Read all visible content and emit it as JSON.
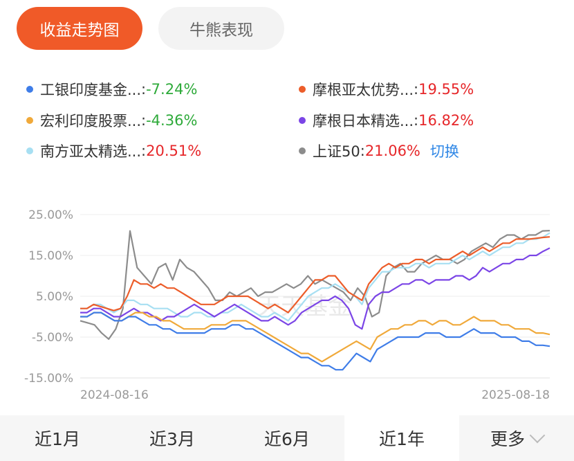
{
  "tabs": [
    {
      "label": "收益走势图",
      "active": true
    },
    {
      "label": "牛熊表现",
      "active": false
    }
  ],
  "legend": [
    {
      "name": "工银印度基金...",
      "value": "-7.24%",
      "color": "#3f7de8",
      "sign": "neg"
    },
    {
      "name": "摩根亚太优势...",
      "value": "19.55%",
      "color": "#ec5d2a",
      "sign": "pos"
    },
    {
      "name": "宏利印度股票...",
      "value": "-4.36%",
      "color": "#f0a93a",
      "sign": "neg"
    },
    {
      "name": "摩根日本精选...",
      "value": "16.82%",
      "color": "#7b45e6",
      "sign": "pos"
    },
    {
      "name": "南方亚太精选...",
      "value": "20.51%",
      "color": "#a7dff2",
      "sign": "pos"
    },
    {
      "name": "上证50",
      "value": "21.06%",
      "color": "#8c8c8c",
      "sign": "pos"
    }
  ],
  "switch_label": "切换",
  "watermark": "天天基金",
  "chart_data": {
    "type": "line",
    "y_ticks": [
      "25.00%",
      "15.00%",
      "5.00%",
      "-5.00%",
      "-15.00%"
    ],
    "ylim": [
      -15,
      25
    ],
    "x_labels": [
      "2024-08-16",
      "2025-08-18"
    ],
    "grid": true,
    "series": [
      {
        "name": "上证50",
        "color": "#8c8c8c",
        "values": [
          -1,
          -1.5,
          -2,
          -4,
          -5.5,
          -3,
          2,
          21,
          12,
          10,
          8,
          12,
          13,
          9,
          14,
          12,
          11,
          9,
          7,
          4,
          4,
          6,
          5,
          6,
          7,
          5,
          6,
          6,
          7,
          8,
          7,
          8,
          10,
          8,
          9,
          8,
          7,
          6,
          4,
          7,
          5,
          0,
          1,
          10,
          12,
          13,
          11,
          11,
          13,
          14,
          15,
          14,
          14,
          13,
          14,
          16,
          17,
          18,
          17,
          19,
          20,
          20,
          19,
          20,
          20,
          21,
          21.06
        ]
      },
      {
        "name": "南方亚太精选...",
        "color": "#a7dff2",
        "values": [
          2,
          2,
          3,
          3,
          2,
          1,
          2,
          4,
          4,
          3,
          3,
          2,
          2,
          2,
          1,
          0,
          0,
          1,
          1,
          0,
          0,
          1,
          1,
          2,
          3,
          2,
          1,
          0,
          0,
          1,
          0,
          -1,
          1,
          3,
          5,
          6,
          7,
          7,
          8,
          7,
          6,
          5,
          3,
          7,
          9,
          11,
          11,
          12,
          12,
          12,
          13,
          13,
          12,
          13,
          13,
          13,
          14,
          15,
          14,
          15,
          16,
          15,
          16,
          17,
          17,
          18,
          18,
          19,
          19,
          19.5,
          20.51
        ]
      },
      {
        "name": "摩根亚太优势...",
        "color": "#ec5d2a",
        "values": [
          2,
          2,
          3,
          2.5,
          2,
          1.5,
          2,
          5,
          9,
          8,
          8,
          7,
          8,
          7,
          7,
          6,
          5,
          4,
          3,
          3,
          3,
          4,
          5,
          5,
          5,
          5,
          4,
          3,
          2,
          3,
          2,
          1,
          3,
          5,
          7,
          9,
          9,
          10,
          10,
          8,
          6,
          5,
          4,
          8,
          10,
          12,
          13,
          12,
          13,
          13,
          14,
          14,
          13,
          14,
          14,
          14,
          15,
          16,
          15,
          16,
          17,
          16,
          17,
          18,
          18,
          19,
          19,
          19,
          19.2,
          19.4,
          19.55
        ]
      },
      {
        "name": "摩根日本精选...",
        "color": "#7b45e6",
        "values": [
          1,
          1,
          2,
          2,
          1,
          0,
          0,
          1,
          2,
          1,
          1,
          0,
          -1,
          0,
          0,
          1,
          2,
          3,
          2,
          1,
          0,
          1,
          2,
          3,
          2,
          1,
          0,
          -1,
          -1,
          0,
          -1,
          -2,
          -1,
          1,
          2,
          3,
          4,
          4,
          5,
          4,
          2,
          -2,
          -3,
          3,
          5,
          6,
          6,
          7,
          8,
          8,
          9,
          9,
          8,
          9,
          9,
          9,
          10,
          10,
          9,
          10,
          12,
          11,
          12,
          13,
          13,
          14,
          14,
          15,
          15,
          16,
          16.82
        ]
      },
      {
        "name": "宏利印度股票...",
        "color": "#f0a93a",
        "values": [
          0,
          0,
          1,
          1,
          0,
          -1,
          -1,
          0,
          1,
          1,
          0,
          0,
          -1,
          -1,
          -2,
          -3,
          -3,
          -3,
          -3,
          -2,
          -2,
          -2,
          -1,
          -1,
          -1,
          -2,
          -3,
          -4,
          -5,
          -6,
          -7,
          -8,
          -9,
          -9,
          -10,
          -11,
          -10,
          -9,
          -8,
          -7,
          -6,
          -7,
          -8,
          -5,
          -4,
          -3,
          -3,
          -2,
          -2,
          -1,
          -1,
          -2,
          -1,
          -1,
          -2,
          -2,
          -1,
          0,
          -1,
          -1,
          -1,
          -2,
          -2,
          -3,
          -3,
          -3,
          -4,
          -4,
          -4.36
        ]
      },
      {
        "name": "工银印度基金...",
        "color": "#3f7de8",
        "values": [
          0,
          0,
          1,
          1,
          0,
          -1,
          -1,
          0,
          0,
          -1,
          -2,
          -2,
          -3,
          -3,
          -4,
          -4,
          -4,
          -4,
          -4,
          -3,
          -3,
          -3,
          -2,
          -2,
          -3,
          -3,
          -4,
          -5,
          -6,
          -7,
          -8,
          -9,
          -10,
          -10,
          -11,
          -12,
          -12,
          -13,
          -13,
          -11,
          -9,
          -10,
          -11,
          -8,
          -7,
          -6,
          -5,
          -5,
          -5,
          -5,
          -4,
          -4,
          -4,
          -5,
          -5,
          -5,
          -4,
          -3,
          -4,
          -4,
          -4,
          -5,
          -5,
          -5,
          -6,
          -6,
          -7,
          -7,
          -7.24
        ]
      }
    ]
  },
  "periods": [
    {
      "label": "近1月",
      "active": false
    },
    {
      "label": "近3月",
      "active": false
    },
    {
      "label": "近6月",
      "active": false
    },
    {
      "label": "近1年",
      "active": true
    },
    {
      "label": "更多",
      "active": false
    }
  ]
}
